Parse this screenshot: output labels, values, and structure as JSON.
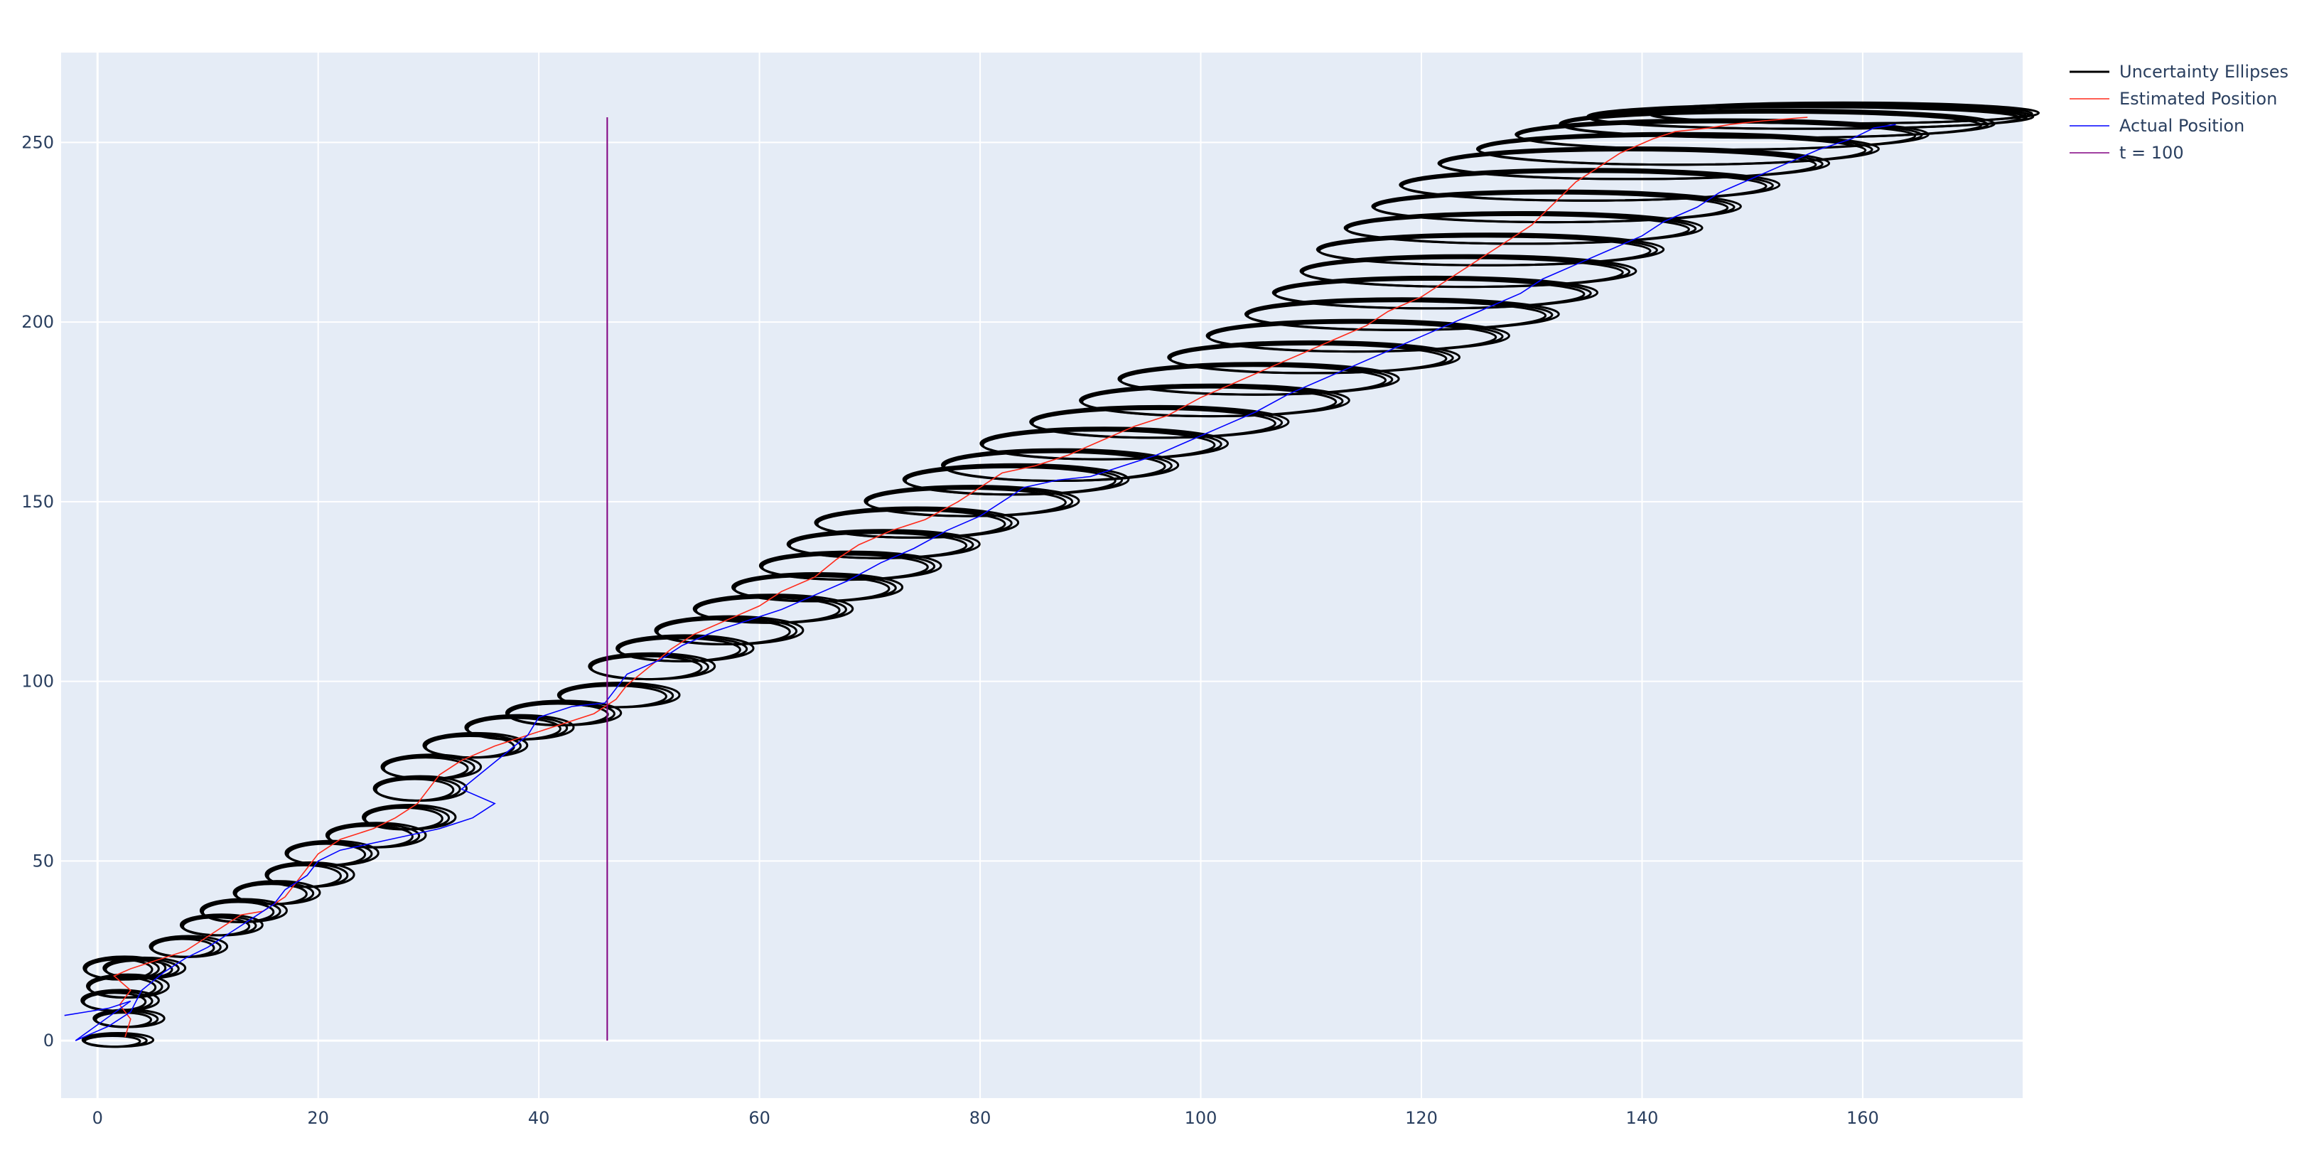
{
  "chart_data": {
    "type": "scatter",
    "title": "",
    "xlabel": "",
    "ylabel": "",
    "xlim": [
      -3.3,
      174.5
    ],
    "ylim": [
      -16,
      275
    ],
    "x_ticks": [
      0,
      20,
      40,
      60,
      80,
      100,
      120,
      140,
      160
    ],
    "y_ticks": [
      0,
      50,
      100,
      150,
      200,
      250
    ],
    "grid": true,
    "legend_position": "top-right (outside plot area)",
    "colors": {
      "plot_background": "#e5ecf6",
      "grid": "#ffffff",
      "ellipses": "#000000",
      "estimated": "#ff2a1a",
      "actual": "#0000ff",
      "marker_line": "#800080",
      "tick_text": "#2a3f5f"
    },
    "legend": [
      {
        "name": "Uncertainty Ellipses",
        "color": "#000000",
        "width": 3
      },
      {
        "name": "Estimated Position",
        "color": "#ff2a1a",
        "width": 1.6
      },
      {
        "name": "Actual Position",
        "color": "#0000ff",
        "width": 1.6
      },
      {
        "name": "t = 100",
        "color": "#800080",
        "width": 1.6
      }
    ],
    "series": [
      {
        "name": "Estimated Position",
        "points": [
          [
            2.5,
            1
          ],
          [
            3,
            6
          ],
          [
            2,
            10
          ],
          [
            3,
            14
          ],
          [
            1.5,
            18
          ],
          [
            3,
            20
          ],
          [
            5,
            22
          ],
          [
            8,
            25
          ],
          [
            10,
            29
          ],
          [
            12,
            33
          ],
          [
            13,
            35
          ],
          [
            15,
            36
          ],
          [
            17,
            40
          ],
          [
            18,
            44
          ],
          [
            19,
            48
          ],
          [
            20,
            52
          ],
          [
            22,
            56
          ],
          [
            25,
            59
          ],
          [
            27,
            62
          ],
          [
            29,
            66
          ],
          [
            30,
            70
          ],
          [
            31,
            74
          ],
          [
            33,
            78
          ],
          [
            36,
            82
          ],
          [
            39,
            85
          ],
          [
            42,
            88
          ],
          [
            45,
            91
          ],
          [
            47,
            95
          ],
          [
            48,
            99
          ],
          [
            50,
            104
          ],
          [
            52,
            109
          ],
          [
            54,
            113
          ],
          [
            57,
            117
          ],
          [
            60,
            121
          ],
          [
            62,
            125
          ],
          [
            65,
            129
          ],
          [
            67,
            134
          ],
          [
            69,
            138
          ],
          [
            72,
            142
          ],
          [
            75,
            145
          ],
          [
            78,
            150
          ],
          [
            80,
            154
          ],
          [
            82,
            158
          ],
          [
            85,
            160
          ],
          [
            88,
            163
          ],
          [
            91,
            167
          ],
          [
            94,
            171
          ],
          [
            97,
            174
          ],
          [
            100,
            179
          ],
          [
            103,
            183
          ],
          [
            106,
            187
          ],
          [
            109,
            191
          ],
          [
            112,
            195
          ],
          [
            115,
            199
          ],
          [
            117,
            203
          ],
          [
            120,
            207
          ],
          [
            122,
            211
          ],
          [
            124,
            215
          ],
          [
            126,
            219
          ],
          [
            128,
            223
          ],
          [
            130,
            227
          ],
          [
            132,
            233
          ],
          [
            134,
            239
          ],
          [
            136,
            243
          ],
          [
            138,
            247
          ],
          [
            141,
            251
          ],
          [
            143,
            253
          ],
          [
            146,
            254
          ],
          [
            148,
            255
          ],
          [
            151,
            256
          ],
          [
            155,
            257
          ]
        ]
      },
      {
        "name": "Actual Position",
        "points": [
          [
            -3,
            7
          ],
          [
            1,
            9
          ],
          [
            3,
            11
          ],
          [
            -2,
            0
          ],
          [
            1,
            4
          ],
          [
            3,
            8
          ],
          [
            4,
            14
          ],
          [
            6,
            19
          ],
          [
            8,
            23
          ],
          [
            10,
            26
          ],
          [
            12,
            30
          ],
          [
            14,
            34
          ],
          [
            16,
            38
          ],
          [
            17,
            42
          ],
          [
            19,
            46
          ],
          [
            20,
            50
          ],
          [
            22,
            53
          ],
          [
            25,
            55
          ],
          [
            28,
            57
          ],
          [
            31,
            59
          ],
          [
            34,
            62
          ],
          [
            36,
            66
          ],
          [
            33,
            70
          ],
          [
            35,
            75
          ],
          [
            37,
            80
          ],
          [
            39,
            85
          ],
          [
            40,
            90
          ],
          [
            43,
            93
          ],
          [
            46,
            94
          ],
          [
            47,
            98
          ],
          [
            48,
            102
          ],
          [
            51,
            106
          ],
          [
            53,
            110
          ],
          [
            56,
            114
          ],
          [
            59,
            117
          ],
          [
            62,
            120
          ],
          [
            65,
            124
          ],
          [
            68,
            128
          ],
          [
            71,
            133
          ],
          [
            74,
            137
          ],
          [
            77,
            142
          ],
          [
            80,
            146
          ],
          [
            82,
            150
          ],
          [
            84,
            154
          ],
          [
            87,
            156
          ],
          [
            90,
            157
          ],
          [
            93,
            160
          ],
          [
            96,
            163
          ],
          [
            99,
            167
          ],
          [
            102,
            171
          ],
          [
            105,
            175
          ],
          [
            108,
            180
          ],
          [
            111,
            184
          ],
          [
            114,
            188
          ],
          [
            117,
            192
          ],
          [
            120,
            196
          ],
          [
            123,
            200
          ],
          [
            126,
            204
          ],
          [
            129,
            208
          ],
          [
            131,
            212
          ],
          [
            134,
            216
          ],
          [
            137,
            220
          ],
          [
            140,
            224
          ],
          [
            142,
            228
          ],
          [
            145,
            232
          ],
          [
            147,
            236
          ],
          [
            150,
            240
          ],
          [
            153,
            244
          ],
          [
            156,
            248
          ],
          [
            159,
            251
          ],
          [
            161,
            254
          ],
          [
            163,
            255
          ]
        ]
      }
    ],
    "uncertainty_ellipses": [
      [
        1.6,
        0,
        2.5,
        1.5
      ],
      [
        2.6,
        6,
        2.5,
        2
      ],
      [
        1.8,
        11,
        2.8,
        2.5
      ],
      [
        2.5,
        15,
        3,
        2.8
      ],
      [
        2.2,
        20,
        3,
        2.8
      ],
      [
        4,
        20,
        3,
        2.5
      ],
      [
        8,
        26,
        2.8,
        2.5
      ],
      [
        11,
        32,
        3,
        2.5
      ],
      [
        13,
        36,
        3.2,
        2.8
      ],
      [
        16,
        41,
        3.2,
        2.8
      ],
      [
        19,
        46,
        3.3,
        3
      ],
      [
        21,
        52,
        3.5,
        3
      ],
      [
        25,
        57,
        3.8,
        3
      ],
      [
        28,
        62,
        3.5,
        3
      ],
      [
        29,
        70,
        3.5,
        3
      ],
      [
        30,
        76,
        3.8,
        3
      ],
      [
        34,
        82,
        4,
        3
      ],
      [
        38,
        87,
        4.2,
        3
      ],
      [
        42,
        91,
        4.5,
        3
      ],
      [
        47,
        96,
        4.8,
        3
      ],
      [
        50,
        104,
        5,
        3.2
      ],
      [
        53,
        109,
        5.5,
        3.2
      ],
      [
        57,
        114,
        6,
        3.5
      ],
      [
        61,
        120,
        6.5,
        3.5
      ],
      [
        65,
        126,
        7,
        3.5
      ],
      [
        68,
        132,
        7.5,
        3.5
      ],
      [
        71,
        138,
        8,
        3.5
      ],
      [
        74,
        144,
        8.5,
        3.8
      ],
      [
        79,
        150,
        9,
        3.8
      ],
      [
        83,
        156,
        9.5,
        3.8
      ],
      [
        87,
        160,
        10,
        4
      ],
      [
        91,
        166,
        10.5,
        4
      ],
      [
        96,
        172,
        11,
        4
      ],
      [
        101,
        178,
        11.5,
        4
      ],
      [
        105,
        184,
        12,
        4
      ],
      [
        110,
        190,
        12.5,
        4
      ],
      [
        114,
        196,
        13,
        4
      ],
      [
        118,
        202,
        13.5,
        4
      ],
      [
        121,
        208,
        14,
        4
      ],
      [
        124,
        214,
        14.5,
        4
      ],
      [
        126,
        220,
        15,
        4
      ],
      [
        129,
        226,
        15.5,
        4
      ],
      [
        132,
        232,
        16,
        4
      ],
      [
        135,
        238,
        16.5,
        4
      ],
      [
        139,
        244,
        17,
        4
      ],
      [
        143,
        248,
        17.5,
        4
      ],
      [
        147,
        252,
        18,
        3.8
      ],
      [
        152,
        255,
        19,
        3.5
      ],
      [
        155,
        257,
        19.5,
        3
      ],
      [
        158,
        258,
        17,
        2.5
      ]
    ],
    "vertical_line": {
      "name": "t = 100",
      "x": 46.2,
      "y_range": [
        0,
        257
      ]
    }
  }
}
